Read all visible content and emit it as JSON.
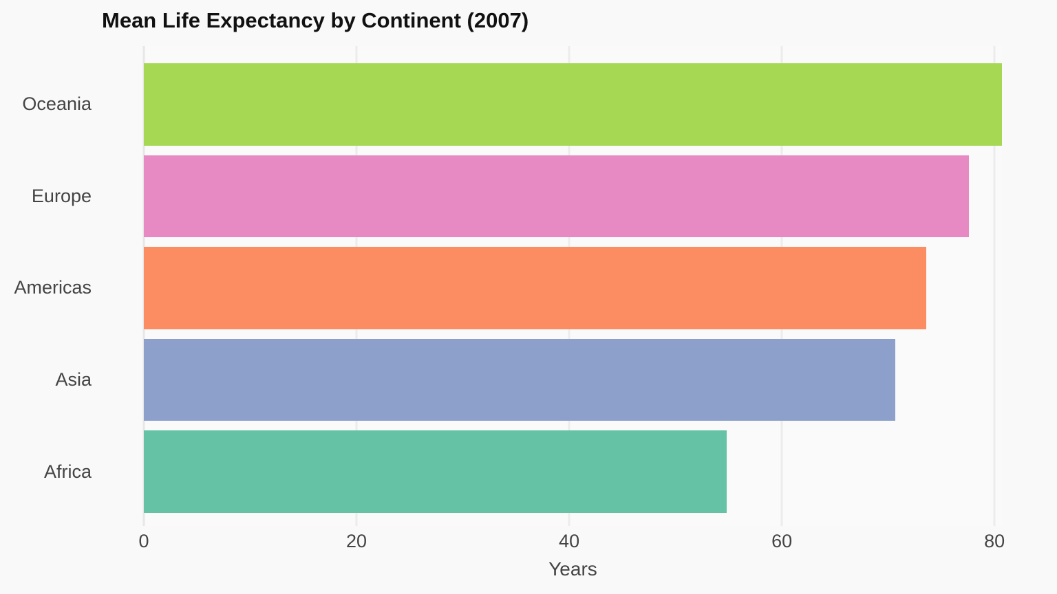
{
  "title": "Mean Life Expectancy by Continent (2007)",
  "chart_data": {
    "type": "bar",
    "orientation": "horizontal",
    "title": "Mean Life Expectancy by Continent (2007)",
    "categories": [
      "Oceania",
      "Europe",
      "Americas",
      "Asia",
      "Africa"
    ],
    "values": [
      80.7,
      77.6,
      73.6,
      70.7,
      54.8
    ],
    "bar_colors": [
      "#a6d854",
      "#e78ac3",
      "#fc8d62",
      "#8da0cb",
      "#66c2a5"
    ],
    "xlabel": "Years",
    "ylabel": "",
    "xticks": [
      0,
      20,
      40,
      60,
      80
    ],
    "xlim": [
      0,
      80.7
    ],
    "grid": true,
    "legend": "none",
    "colors": {
      "figure_background": "#f9f9f9",
      "plot_background": "#fafafa",
      "gridline": "#ececec",
      "tick_text": "#444444",
      "title_text": "#111111"
    }
  }
}
